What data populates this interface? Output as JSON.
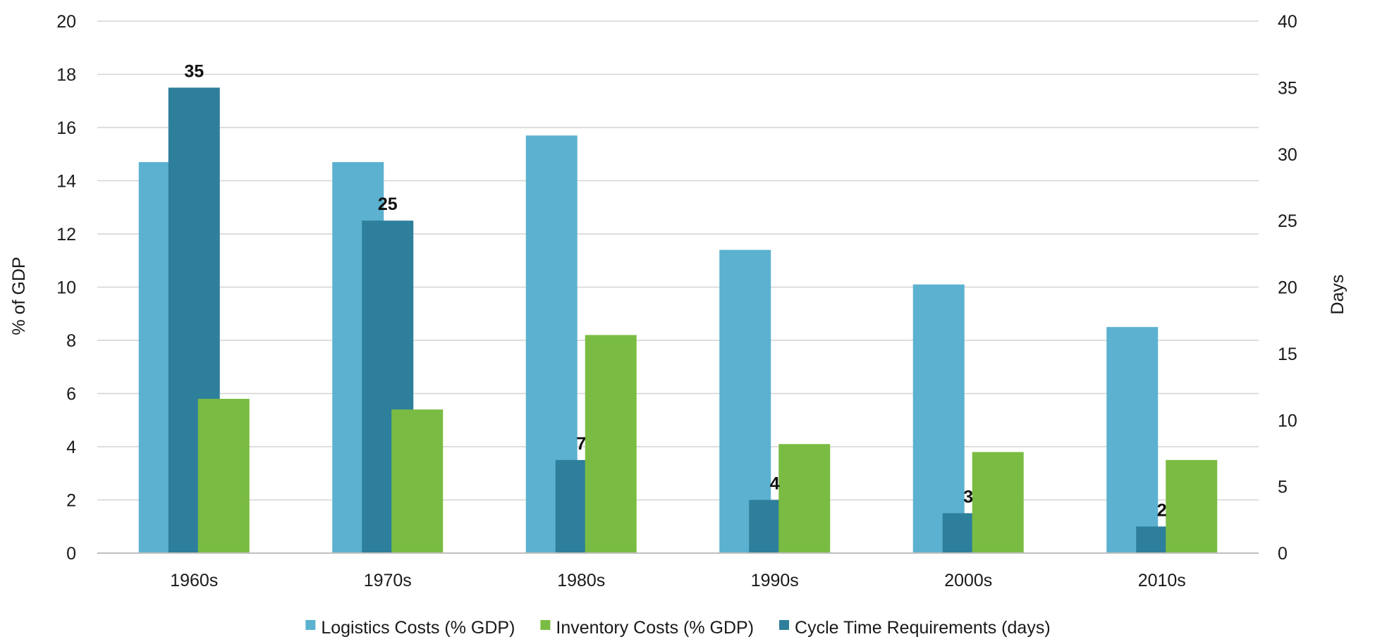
{
  "chart_data": {
    "type": "bar",
    "categories": [
      "1960s",
      "1970s",
      "1980s",
      "1990s",
      "2000s",
      "2010s"
    ],
    "series": [
      {
        "name": "Logistics Costs (% GDP)",
        "axis": "left",
        "color": "#5BB1CF",
        "values": [
          14.7,
          14.7,
          15.7,
          11.4,
          10.1,
          8.5
        ]
      },
      {
        "name": "Cycle Time Requirements (days)",
        "axis": "right",
        "color": "#2E7F9B",
        "values": [
          35,
          25,
          7,
          4,
          3,
          2
        ]
      },
      {
        "name": "Inventory Costs (% GDP)",
        "axis": "left",
        "color": "#7ABC43",
        "values": [
          5.8,
          5.4,
          8.2,
          4.1,
          3.8,
          3.5
        ]
      }
    ],
    "legend_order": [
      "Logistics Costs (% GDP)",
      "Inventory Costs (% GDP)",
      "Cycle Time Requirements (days)"
    ],
    "data_labels_series": "Cycle Time Requirements (days)",
    "ylabel": "% of GDP",
    "ylabel_right": "Days",
    "ylim": [
      0,
      20
    ],
    "ylim_right": [
      0,
      40
    ],
    "yticks": [
      0,
      2,
      4,
      6,
      8,
      10,
      12,
      14,
      16,
      18,
      20
    ],
    "yticks_right": [
      0,
      5,
      10,
      15,
      20,
      25,
      30,
      35,
      40
    ],
    "grid": true,
    "legend_position": "bottom"
  }
}
